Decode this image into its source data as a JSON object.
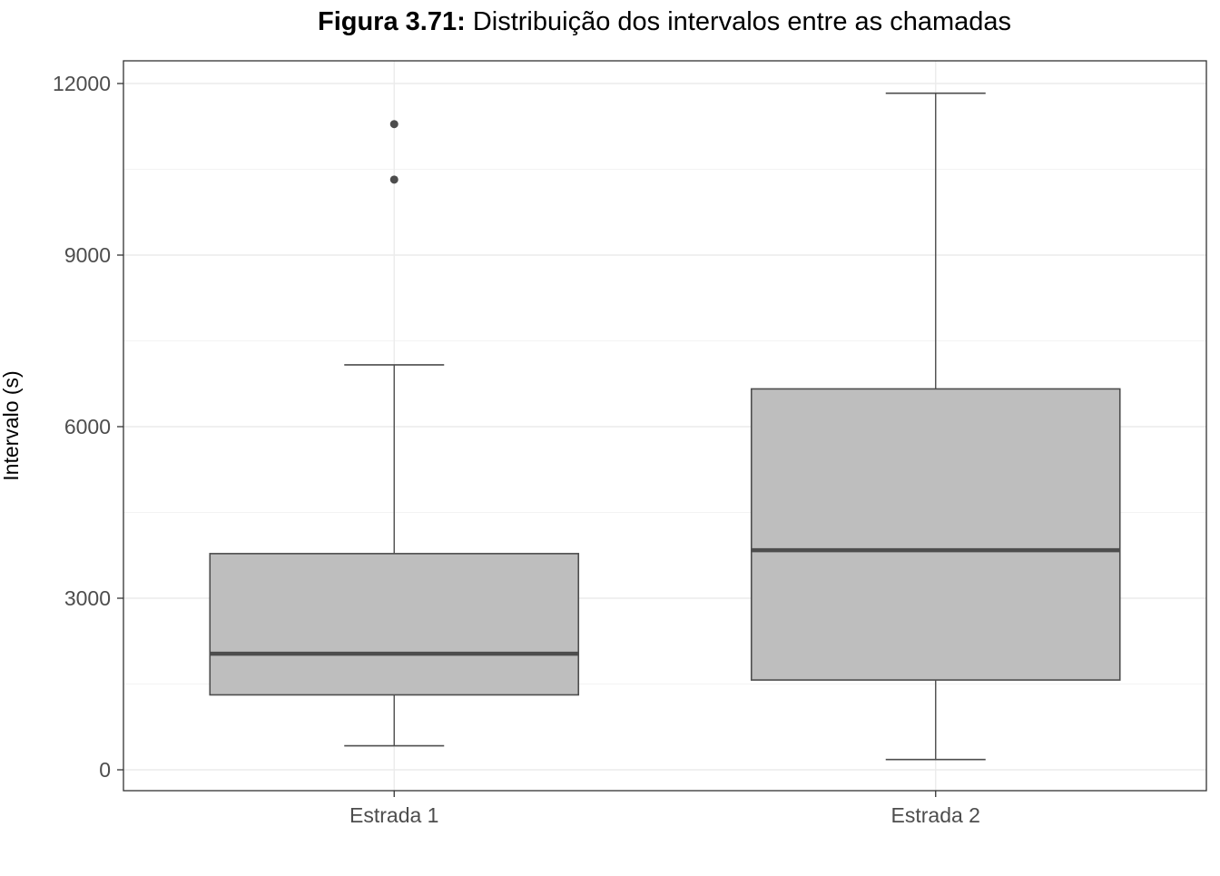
{
  "chart_data": {
    "type": "boxplot",
    "title_prefix": "Figura 3.71:",
    "title_rest": " Distribuição dos intervalos entre as chamadas",
    "xlabel": "",
    "ylabel": "Intervalo (s)",
    "categories": [
      "Estrada 1",
      "Estrada 2"
    ],
    "ylim": [
      -400,
      12400
    ],
    "y_ticks": [
      0,
      3000,
      6000,
      9000,
      12000
    ],
    "y_tick_labels": [
      "0",
      "3000",
      "6000",
      "9000",
      "12000"
    ],
    "grid": true,
    "legend": "none",
    "boxes": [
      {
        "category": "Estrada 1",
        "whisker_low": 420,
        "q1": 1310,
        "median": 2030,
        "q3": 3780,
        "whisker_high": 7080,
        "outliers": [
          10320,
          11290
        ]
      },
      {
        "category": "Estrada 2",
        "whisker_low": 180,
        "q1": 1570,
        "median": 3840,
        "q3": 6660,
        "whisker_high": 11830,
        "outliers": []
      }
    ],
    "colors": {
      "box_fill": "#bebebe",
      "box_stroke": "#4d4d4d",
      "median": "#4d4d4d",
      "outlier": "#4d4d4d",
      "grid_major": "#ebebeb",
      "grid_minor": "#f3f3f3",
      "panel_border": "#333333"
    }
  }
}
